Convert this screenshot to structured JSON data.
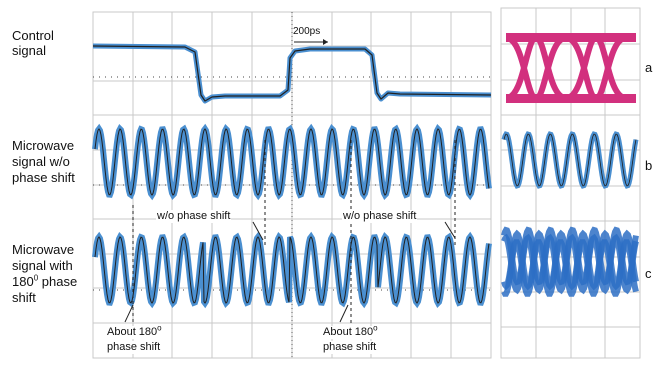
{
  "row_labels": {
    "control": "Control\nsignal",
    "mw_no_shift_l1": "Microwave",
    "mw_no_shift_l2": "signal w/o",
    "mw_no_shift_l3": "phase shift",
    "mw_shift_l1": "Microwave",
    "mw_shift_l2": "signal with",
    "mw_shift_l3_pre": "180",
    "mw_shift_l3_sup": "0",
    "mw_shift_l3_post": " phase",
    "mw_shift_l4": "shift"
  },
  "annotations": {
    "time_marker": "200ps",
    "wo_phase_shift_1": "w/o phase shift",
    "wo_phase_shift_2": "w/o phase shift",
    "about_180_1_pre": "About 180",
    "about_180_1_sup": "o",
    "about_180_1_line2": "phase shift",
    "about_180_2_pre": "About 180",
    "about_180_2_sup": "o",
    "about_180_2_line2": "phase shift"
  },
  "panel_letters": {
    "a": "a",
    "b": "b",
    "c": "c"
  },
  "colors": {
    "grid": "#c9c9c9",
    "trace_blue": "#4a8fd0",
    "trace_dark": "#202020",
    "eye_magenta": "#d2307e",
    "eye_blue": "#2d6fc4"
  }
}
